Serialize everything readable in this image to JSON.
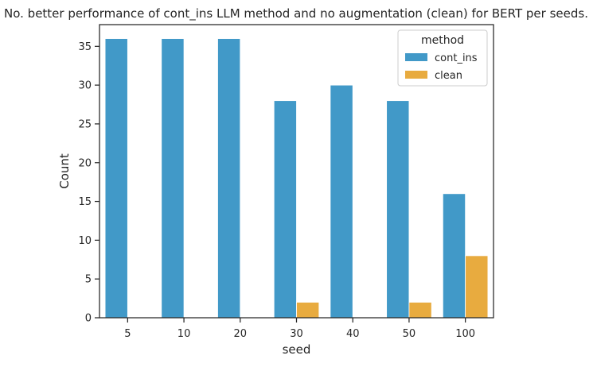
{
  "chart_data": {
    "type": "bar",
    "title": "No. better performance of cont_ins LLM method and no augmentation (clean) for BERT per seeds.",
    "xlabel": "seed",
    "ylabel": "Count",
    "categories": [
      "5",
      "10",
      "20",
      "30",
      "40",
      "50",
      "100"
    ],
    "ylim": [
      0,
      37.8
    ],
    "yticks": [
      0,
      5,
      10,
      15,
      20,
      25,
      30,
      35
    ],
    "grid": false,
    "legend": {
      "title": "method",
      "placement": "top-right"
    },
    "series": [
      {
        "name": "cont_ins",
        "color": "#4199c8",
        "values": [
          36,
          36,
          36,
          28,
          30,
          28,
          16
        ]
      },
      {
        "name": "clean",
        "color": "#e8ab3f",
        "values": [
          0,
          0,
          0,
          2,
          0,
          2,
          8
        ]
      }
    ]
  }
}
